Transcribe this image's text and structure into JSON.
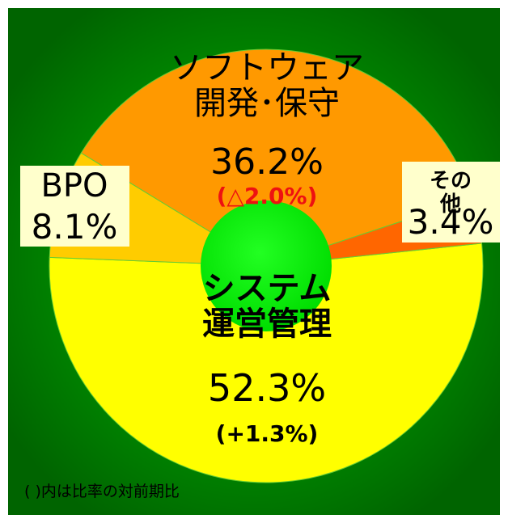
{
  "chart_data": {
    "type": "donut",
    "categories": [
      "システム\n運営管理",
      "BPO",
      "ソフトウェア\n開発･保守",
      "その他"
    ],
    "values": [
      52.3,
      8.1,
      36.2,
      3.4
    ],
    "value_labels": [
      "52.3%",
      "8.1%",
      "36.2%",
      "3.4%"
    ],
    "change_labels": [
      "(+1.3%)",
      null,
      "(△2.0%)",
      null
    ],
    "colors": [
      "#ffff00",
      "#ffcc00",
      "#ff9900",
      "#ff6600"
    ],
    "start_angle": -6,
    "note": "(   )内は比率の対前期比"
  }
}
